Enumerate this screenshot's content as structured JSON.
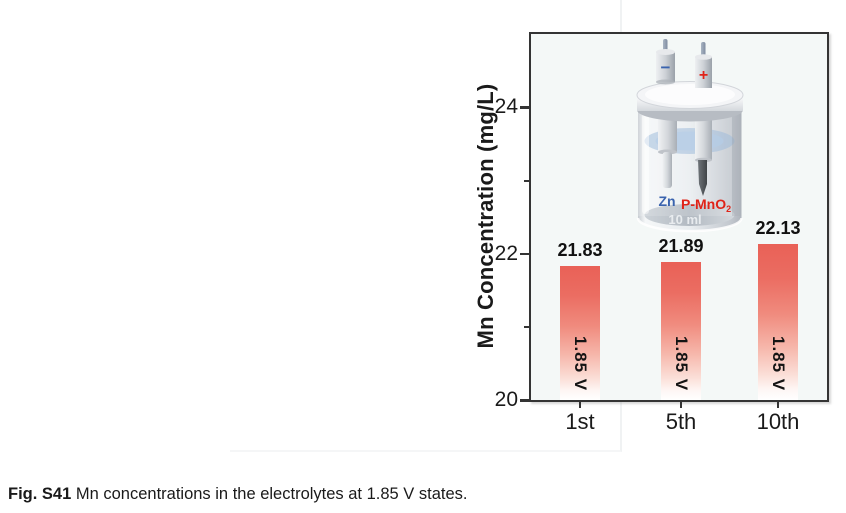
{
  "figure": {
    "caption_prefix": "Fig. S41",
    "caption_text": " Mn concentrations in the electrolytes at 1.85 V states."
  },
  "chart_data": {
    "type": "bar",
    "title": "",
    "xlabel": "",
    "ylabel": "Mn Concentration (mg/L)",
    "categories": [
      "1st",
      "5th",
      "10th"
    ],
    "values": [
      21.83,
      21.89,
      22.13
    ],
    "value_labels": [
      "21.83",
      "21.89",
      "22.13"
    ],
    "bar_inner_labels": [
      "1.85 V",
      "1.85 V",
      "1.85 V"
    ],
    "ylim": [
      20,
      25
    ],
    "yticks": [
      20,
      22,
      24
    ],
    "ytick_labels": [
      "20",
      "22",
      "24"
    ],
    "minor_yticks": [
      21,
      23
    ],
    "grid": false,
    "legend": "none",
    "bar_color_top": "#e96157",
    "bar_color_bottom": "#ffffff",
    "plot_background": "#f4f8f7",
    "axis_color": "#343434"
  },
  "inset": {
    "negative_sign": "−",
    "positive_sign": "+",
    "anode_label": "Zn",
    "cathode_label_main": "P-MnO",
    "cathode_label_sub": "2",
    "volume_label": "10 ml",
    "anode_color": "#3a63ae",
    "cathode_color": "#e02318"
  }
}
